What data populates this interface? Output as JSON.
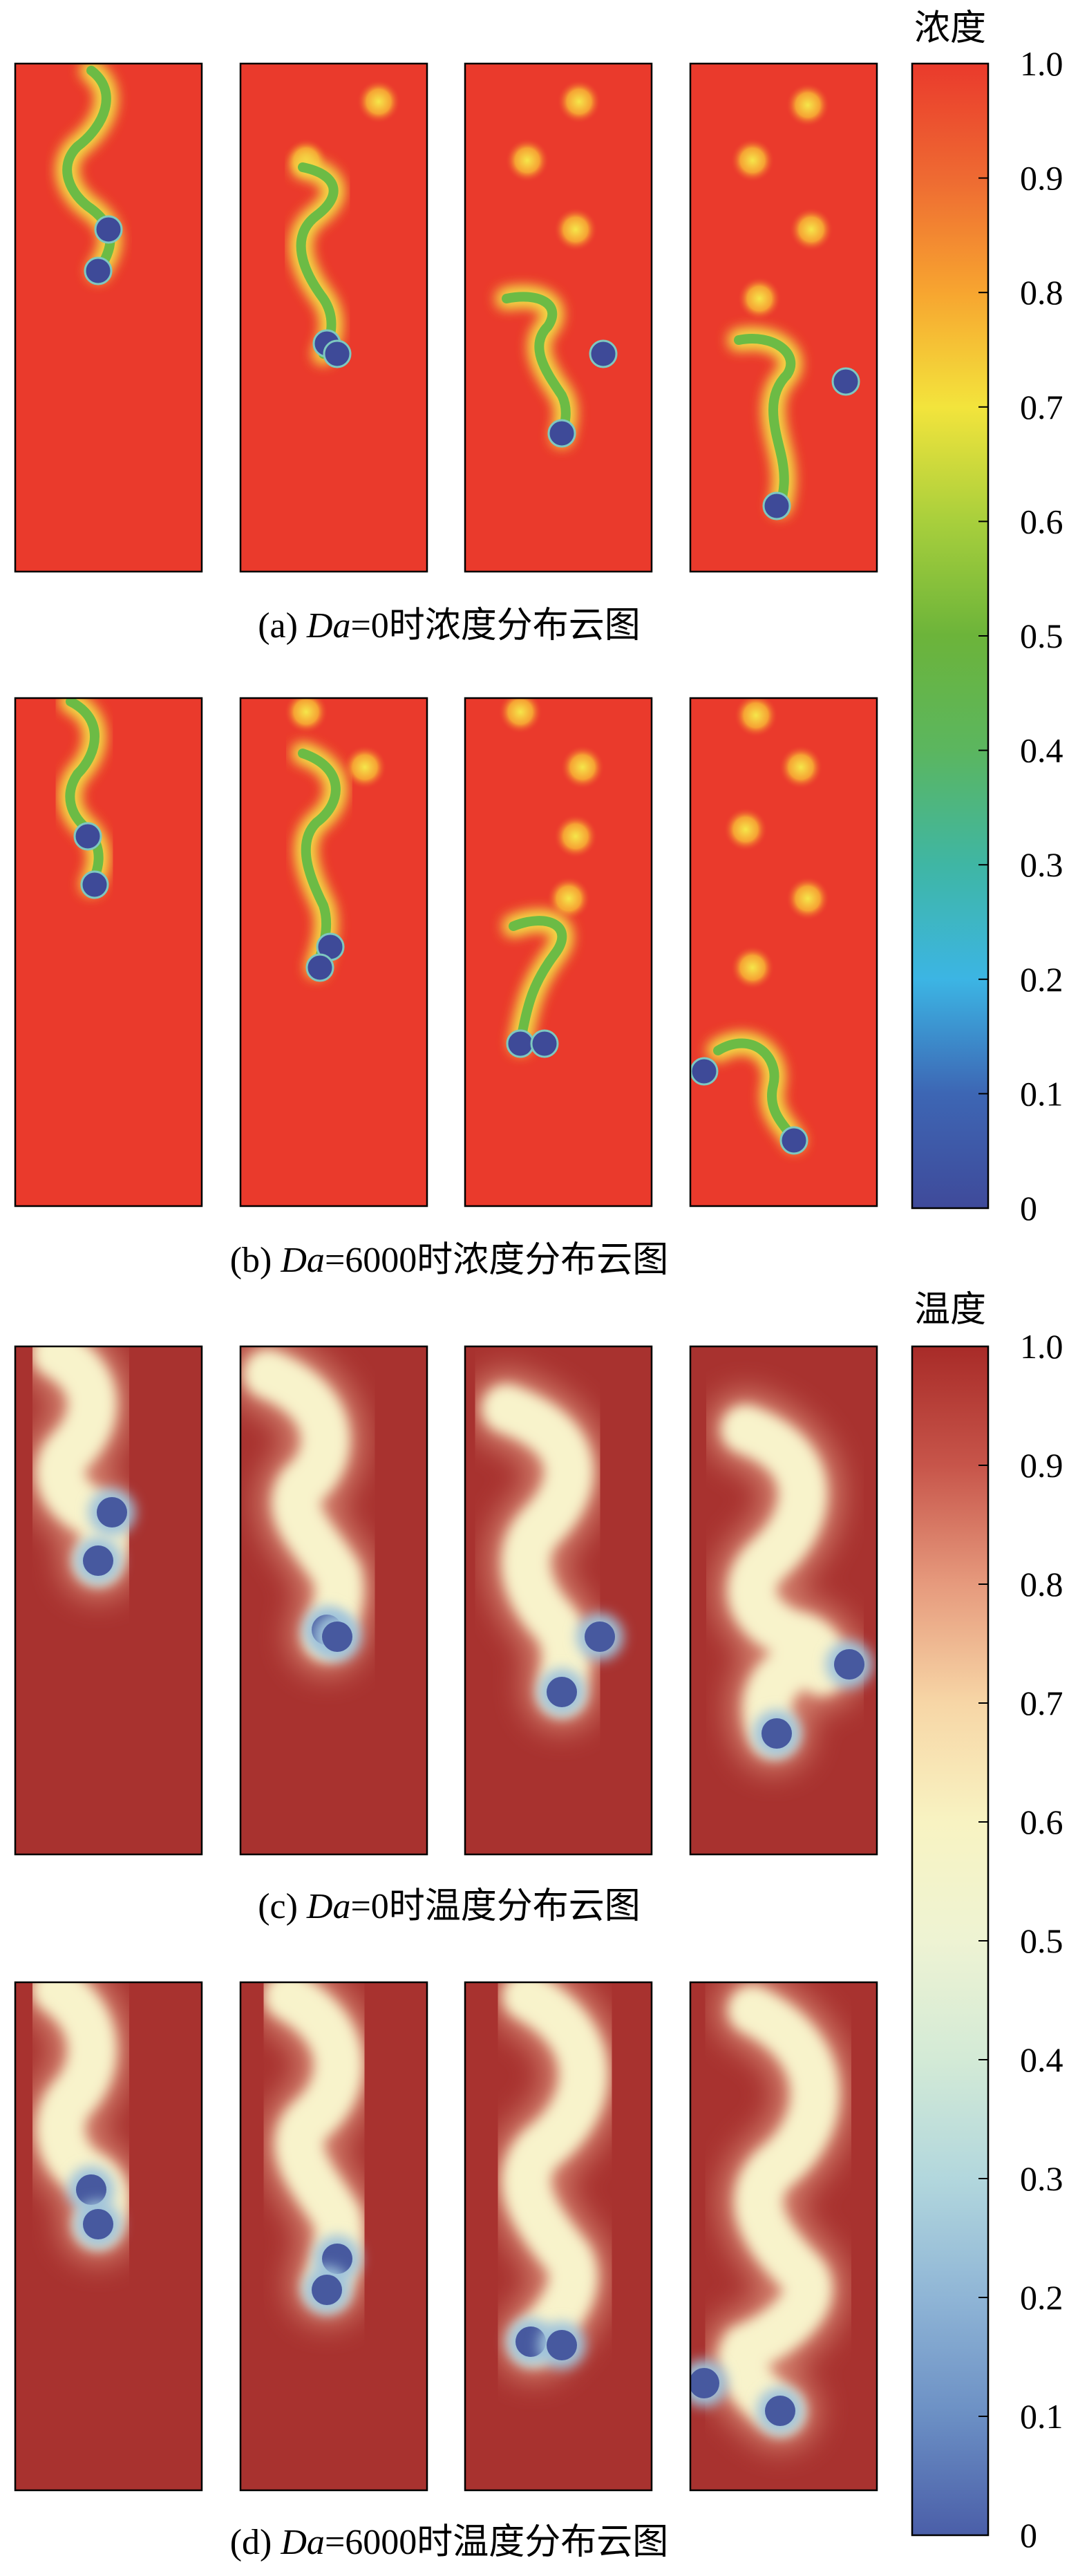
{
  "figure": {
    "rows": [
      {
        "id": "a",
        "prefix": "(a) ",
        "var": "Da",
        "suffix": "=0时浓度分布云图",
        "field": "concentration"
      },
      {
        "id": "b",
        "prefix": "(b) ",
        "var": "Da",
        "suffix": "=6000时浓度分布云图",
        "field": "concentration"
      },
      {
        "id": "c",
        "prefix": "(c) ",
        "var": "Da",
        "suffix": "=0时温度分布云图",
        "field": "temperature"
      },
      {
        "id": "d",
        "prefix": "(d) ",
        "var": "Da",
        "suffix": "=6000时温度分布云图",
        "field": "temperature"
      }
    ],
    "panels_per_row": 4,
    "colorbars": [
      {
        "title": "浓度",
        "ticks": [
          "1.0",
          "0.9",
          "0.8",
          "0.7",
          "0.6",
          "0.5",
          "0.4",
          "0.3",
          "0.2",
          "0.1",
          "0"
        ],
        "stops": [
          "#ea3a2c",
          "#ee6a32",
          "#f7a530",
          "#f3e43c",
          "#a8cf3c",
          "#6cb43a",
          "#5bb65f",
          "#3fb6a4",
          "#3cb5e4",
          "#3d66b4",
          "#3f4a9a"
        ]
      },
      {
        "title": "温度",
        "ticks": [
          "1.0",
          "0.9",
          "0.8",
          "0.7",
          "0.6",
          "0.5",
          "0.4",
          "0.3",
          "0.2",
          "0.1",
          "0"
        ],
        "stops": [
          "#a82b28",
          "#c7554a",
          "#e69a7d",
          "#f7d6a6",
          "#f8f3c2",
          "#eef3d3",
          "#d3ead6",
          "#b2d7dd",
          "#8fb5d6",
          "#6b8fc4",
          "#4a5ea8"
        ]
      }
    ],
    "colors": {
      "conc_bg": "#ea3a2c",
      "conc_green": "#6cbb45",
      "conc_yellow": "#f2e44a",
      "conc_particle": "#3e4a98",
      "temp_bg": "#a8322f",
      "temp_cream": "#f8f3cb",
      "temp_particle": "#47599f"
    }
  }
}
